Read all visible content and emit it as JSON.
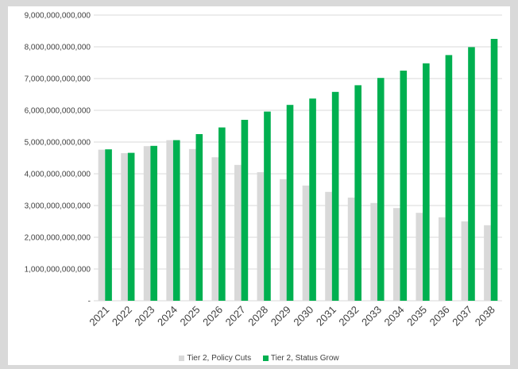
{
  "chart_data": {
    "type": "bar",
    "categories": [
      "2021",
      "2022",
      "2023",
      "2024",
      "2025",
      "2026",
      "2027",
      "2028",
      "2029",
      "2030",
      "2031",
      "2032",
      "2033",
      "2034",
      "2035",
      "2036",
      "2037",
      "2038"
    ],
    "series": [
      {
        "name": "Tier 2, Policy Cuts",
        "color": "#d9d9d9",
        "values": [
          4760000000000,
          4650000000000,
          4870000000000,
          5060000000000,
          4780000000000,
          4520000000000,
          4280000000000,
          4050000000000,
          3830000000000,
          3630000000000,
          3430000000000,
          3250000000000,
          3080000000000,
          2920000000000,
          2770000000000,
          2630000000000,
          2500000000000,
          2380000000000
        ]
      },
      {
        "name": "Tier 2, Status Grow",
        "color": "#00b050",
        "values": [
          4770000000000,
          4660000000000,
          4880000000000,
          5060000000000,
          5250000000000,
          5460000000000,
          5700000000000,
          5960000000000,
          6170000000000,
          6370000000000,
          6580000000000,
          6790000000000,
          7020000000000,
          7250000000000,
          7480000000000,
          7740000000000,
          7990000000000,
          8250000000000
        ]
      }
    ],
    "y_ticks": [
      {
        "value": 0,
        "label": "-"
      },
      {
        "value": 1000000000000,
        "label": "1,000,000,000,000"
      },
      {
        "value": 2000000000000,
        "label": "2,000,000,000,000"
      },
      {
        "value": 3000000000000,
        "label": "3,000,000,000,000"
      },
      {
        "value": 4000000000000,
        "label": "4,000,000,000,000"
      },
      {
        "value": 5000000000000,
        "label": "5,000,000,000,000"
      },
      {
        "value": 6000000000000,
        "label": "6,000,000,000,000"
      },
      {
        "value": 7000000000000,
        "label": "7,000,000,000,000"
      },
      {
        "value": 8000000000000,
        "label": "8,000,000,000,000"
      },
      {
        "value": 9000000000000,
        "label": "9,000,000,000,000"
      }
    ],
    "ylim": [
      0,
      9000000000000
    ],
    "grid": true,
    "legend_position": "bottom",
    "title": "",
    "xlabel": "",
    "ylabel": ""
  }
}
